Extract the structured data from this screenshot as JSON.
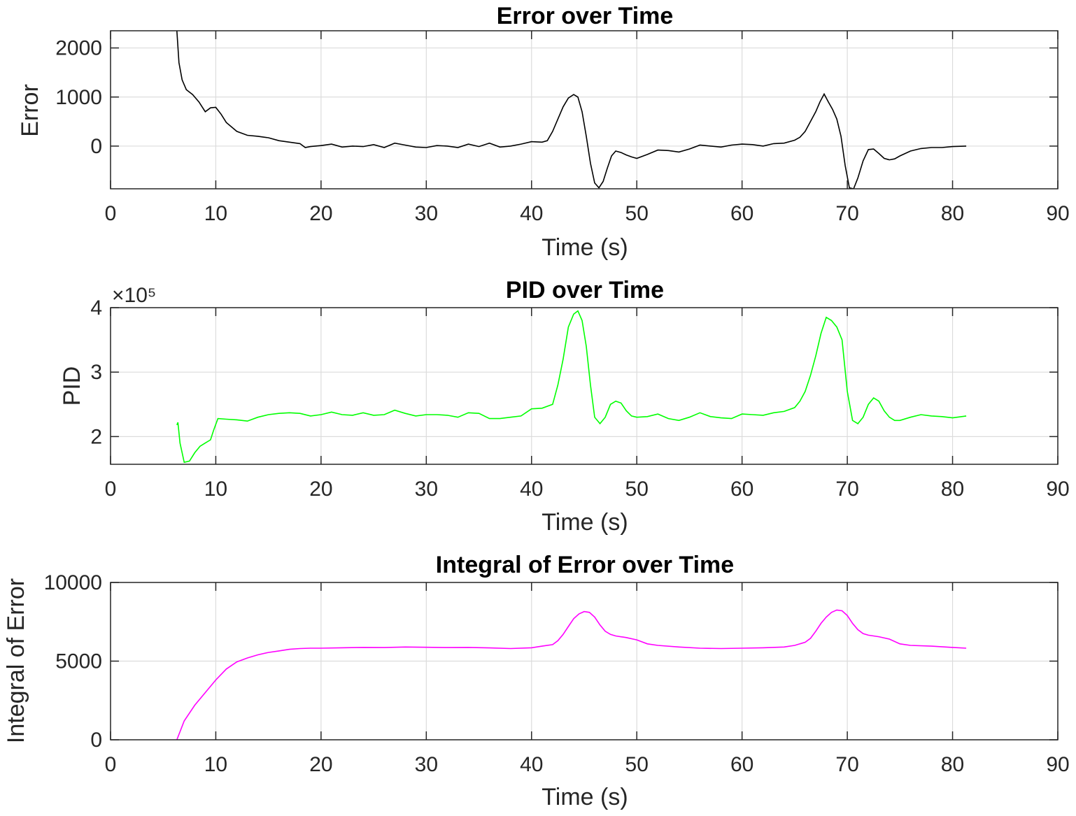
{
  "chart_data": [
    {
      "type": "line",
      "title": "Error over Time",
      "xlabel": "Time (s)",
      "ylabel": "Error",
      "xlim": [
        0,
        90
      ],
      "ylim": [
        -870,
        2350
      ],
      "xticks": [
        0,
        10,
        20,
        30,
        40,
        50,
        60,
        70,
        80,
        90
      ],
      "yticks": [
        0,
        1000,
        2000
      ],
      "exponent_label": "",
      "grid": true,
      "color": "#000000",
      "series": [
        {
          "x": [
            6.3,
            6.5,
            6.8,
            7.2,
            7.8,
            8.4,
            9.0,
            9.5,
            10.0,
            10.5,
            11.0,
            12.0,
            13.0,
            14.0,
            15.0,
            16.0,
            17.0,
            18.0,
            18.5,
            19.0,
            20.0,
            21.0,
            22.0,
            23.0,
            24.0,
            25.0,
            26.0,
            27.0,
            28.0,
            29.0,
            30.0,
            31.0,
            32.0,
            33.0,
            34.0,
            35.0,
            36.0,
            37.0,
            38.0,
            39.0,
            40.0,
            41.0,
            41.5,
            42.0,
            42.5,
            43.0,
            43.5,
            44.0,
            44.4,
            44.8,
            45.2,
            45.6,
            46.0,
            46.4,
            46.8,
            47.2,
            47.6,
            48.0,
            48.5,
            49.0,
            49.5,
            50.0,
            51.0,
            52.0,
            53.0,
            54.0,
            55.0,
            56.0,
            57.0,
            58.0,
            59.0,
            60.0,
            61.0,
            62.0,
            63.0,
            64.0,
            65.0,
            65.5,
            66.0,
            66.5,
            67.0,
            67.4,
            67.8,
            68.2,
            68.6,
            69.0,
            69.4,
            69.8,
            70.2,
            70.6,
            71.0,
            71.5,
            72.0,
            72.5,
            73.0,
            73.5,
            74.0,
            74.5,
            75.0,
            76.0,
            77.0,
            78.0,
            79.0,
            80.0,
            81.3
          ],
          "y": [
            2350,
            1700,
            1350,
            1150,
            1050,
            900,
            700,
            780,
            790,
            650,
            480,
            300,
            220,
            200,
            170,
            110,
            80,
            50,
            -30,
            -10,
            10,
            40,
            -20,
            0,
            -10,
            30,
            -30,
            60,
            20,
            -20,
            -30,
            10,
            0,
            -30,
            40,
            -10,
            60,
            -20,
            0,
            40,
            90,
            80,
            110,
            300,
            550,
            800,
            980,
            1050,
            1000,
            700,
            200,
            -350,
            -750,
            -850,
            -720,
            -450,
            -200,
            -100,
            -130,
            -180,
            -220,
            -250,
            -170,
            -80,
            -90,
            -120,
            -60,
            20,
            0,
            -20,
            20,
            40,
            30,
            0,
            50,
            60,
            120,
            180,
            300,
            500,
            700,
            900,
            1060,
            900,
            750,
            550,
            200,
            -400,
            -850,
            -870,
            -650,
            -300,
            -70,
            -60,
            -150,
            -250,
            -280,
            -260,
            -200,
            -100,
            -50,
            -30,
            -30,
            -10,
            0
          ]
        }
      ]
    },
    {
      "type": "line",
      "title": "PID over Time",
      "xlabel": "Time (s)",
      "ylabel": "PID",
      "xlim": [
        0,
        90
      ],
      "ylim": [
        1.57,
        4.0
      ],
      "xticks": [
        0,
        10,
        20,
        30,
        40,
        50,
        60,
        70,
        80,
        90
      ],
      "yticks": [
        2,
        3,
        4
      ],
      "exponent_label": "×10⁵",
      "grid": true,
      "color": "#00ff00",
      "series": [
        {
          "x": [
            6.3,
            6.4,
            6.6,
            7.0,
            7.5,
            8.0,
            8.5,
            9.0,
            9.5,
            9.8,
            10.2,
            11.0,
            12.0,
            13.0,
            14.0,
            15.0,
            16.0,
            17.0,
            18.0,
            19.0,
            20.0,
            21.0,
            22.0,
            23.0,
            24.0,
            25.0,
            26.0,
            27.0,
            28.0,
            29.0,
            30.0,
            31.0,
            32.0,
            33.0,
            34.0,
            35.0,
            36.0,
            37.0,
            38.0,
            39.0,
            40.0,
            41.0,
            42.0,
            42.5,
            43.0,
            43.5,
            44.0,
            44.4,
            44.8,
            45.2,
            45.6,
            46.0,
            46.5,
            47.0,
            47.5,
            48.0,
            48.5,
            49.0,
            49.5,
            50.0,
            51.0,
            52.0,
            53.0,
            54.0,
            55.0,
            56.0,
            57.0,
            58.0,
            59.0,
            60.0,
            61.0,
            62.0,
            63.0,
            64.0,
            65.0,
            65.5,
            66.0,
            66.5,
            67.0,
            67.5,
            68.0,
            68.5,
            69.0,
            69.5,
            70.0,
            70.5,
            71.0,
            71.5,
            72.0,
            72.5,
            73.0,
            73.5,
            74.0,
            74.5,
            75.0,
            76.0,
            77.0,
            78.0,
            79.0,
            80.0,
            81.3
          ],
          "y": [
            2.18,
            2.22,
            1.9,
            1.6,
            1.62,
            1.75,
            1.85,
            1.9,
            1.95,
            2.1,
            2.28,
            2.27,
            2.26,
            2.24,
            2.3,
            2.34,
            2.36,
            2.37,
            2.36,
            2.32,
            2.34,
            2.38,
            2.34,
            2.33,
            2.37,
            2.33,
            2.34,
            2.41,
            2.36,
            2.32,
            2.34,
            2.34,
            2.33,
            2.3,
            2.37,
            2.36,
            2.28,
            2.28,
            2.3,
            2.32,
            2.43,
            2.44,
            2.5,
            2.8,
            3.2,
            3.7,
            3.9,
            3.95,
            3.8,
            3.4,
            2.8,
            2.3,
            2.2,
            2.3,
            2.5,
            2.55,
            2.52,
            2.4,
            2.32,
            2.3,
            2.31,
            2.35,
            2.28,
            2.25,
            2.3,
            2.37,
            2.31,
            2.29,
            2.28,
            2.35,
            2.34,
            2.33,
            2.37,
            2.39,
            2.45,
            2.55,
            2.7,
            2.95,
            3.25,
            3.6,
            3.85,
            3.8,
            3.7,
            3.5,
            2.7,
            2.25,
            2.2,
            2.3,
            2.5,
            2.6,
            2.55,
            2.4,
            2.3,
            2.25,
            2.25,
            2.3,
            2.34,
            2.32,
            2.31,
            2.29,
            2.32
          ]
        }
      ]
    },
    {
      "type": "line",
      "title": "Integral of Error over Time",
      "xlabel": "Time (s)",
      "ylabel": "Integral of Error",
      "xlim": [
        0,
        90
      ],
      "ylim": [
        0,
        10000
      ],
      "xticks": [
        0,
        10,
        20,
        30,
        40,
        50,
        60,
        70,
        80,
        90
      ],
      "yticks": [
        0,
        5000,
        10000
      ],
      "exponent_label": "",
      "grid": true,
      "color": "#ff00ff",
      "series": [
        {
          "x": [
            6.3,
            7.0,
            8.0,
            9.0,
            10.0,
            11.0,
            12.0,
            13.0,
            14.0,
            15.0,
            16.0,
            17.0,
            18.0,
            19.0,
            20.0,
            22.0,
            24.0,
            26.0,
            28.0,
            30.0,
            32.0,
            34.0,
            36.0,
            38.0,
            40.0,
            41.0,
            42.0,
            42.5,
            43.0,
            43.5,
            44.0,
            44.5,
            45.0,
            45.5,
            46.0,
            46.5,
            47.0,
            47.5,
            48.0,
            49.0,
            50.0,
            51.0,
            52.0,
            54.0,
            56.0,
            58.0,
            60.0,
            62.0,
            64.0,
            65.0,
            66.0,
            66.5,
            67.0,
            67.5,
            68.0,
            68.5,
            69.0,
            69.5,
            70.0,
            70.5,
            71.0,
            71.5,
            72.0,
            73.0,
            74.0,
            75.0,
            76.0,
            78.0,
            80.0,
            81.3
          ],
          "y": [
            0,
            1200,
            2200,
            3000,
            3800,
            4500,
            4950,
            5200,
            5400,
            5550,
            5650,
            5750,
            5800,
            5820,
            5820,
            5850,
            5870,
            5860,
            5900,
            5880,
            5860,
            5870,
            5840,
            5800,
            5850,
            5950,
            6050,
            6300,
            6700,
            7200,
            7700,
            8000,
            8150,
            8100,
            7800,
            7300,
            6900,
            6700,
            6600,
            6500,
            6350,
            6100,
            6000,
            5900,
            5820,
            5800,
            5820,
            5850,
            5900,
            6000,
            6200,
            6450,
            6900,
            7400,
            7800,
            8100,
            8250,
            8200,
            7900,
            7400,
            7000,
            6750,
            6650,
            6550,
            6400,
            6100,
            6000,
            5950,
            5870,
            5820
          ]
        }
      ]
    }
  ]
}
